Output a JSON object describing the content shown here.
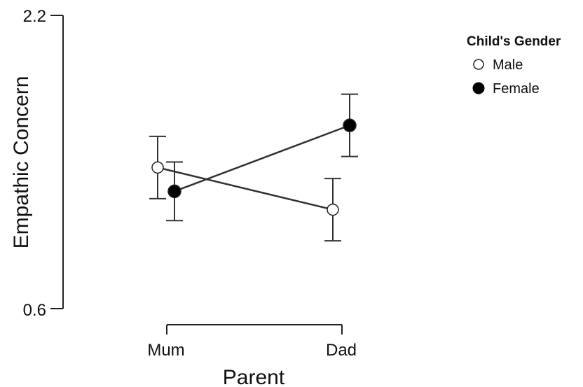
{
  "chart_data": {
    "type": "line",
    "title": "",
    "xlabel": "Parent",
    "ylabel": "Empathic Concern",
    "categories": [
      "Mum",
      "Dad"
    ],
    "ylim": [
      0.6,
      2.2
    ],
    "yticks": [
      "2.2",
      "0.6"
    ],
    "grid": false,
    "legend": {
      "title": "Child's Gender",
      "placement": "top-right"
    },
    "series": [
      {
        "name": "Male",
        "marker": "open-circle",
        "values": [
          1.37,
          1.14
        ],
        "error_low": [
          1.2,
          0.97
        ],
        "error_high": [
          1.54,
          1.31
        ]
      },
      {
        "name": "Female",
        "marker": "filled-circle",
        "values": [
          1.24,
          1.6
        ],
        "error_low": [
          1.08,
          1.43
        ],
        "error_high": [
          1.4,
          1.77
        ]
      }
    ],
    "colors": {
      "line": "#333333",
      "marker_stroke": "#222222",
      "female_fill": "#000000",
      "male_fill": "#ffffff"
    }
  }
}
